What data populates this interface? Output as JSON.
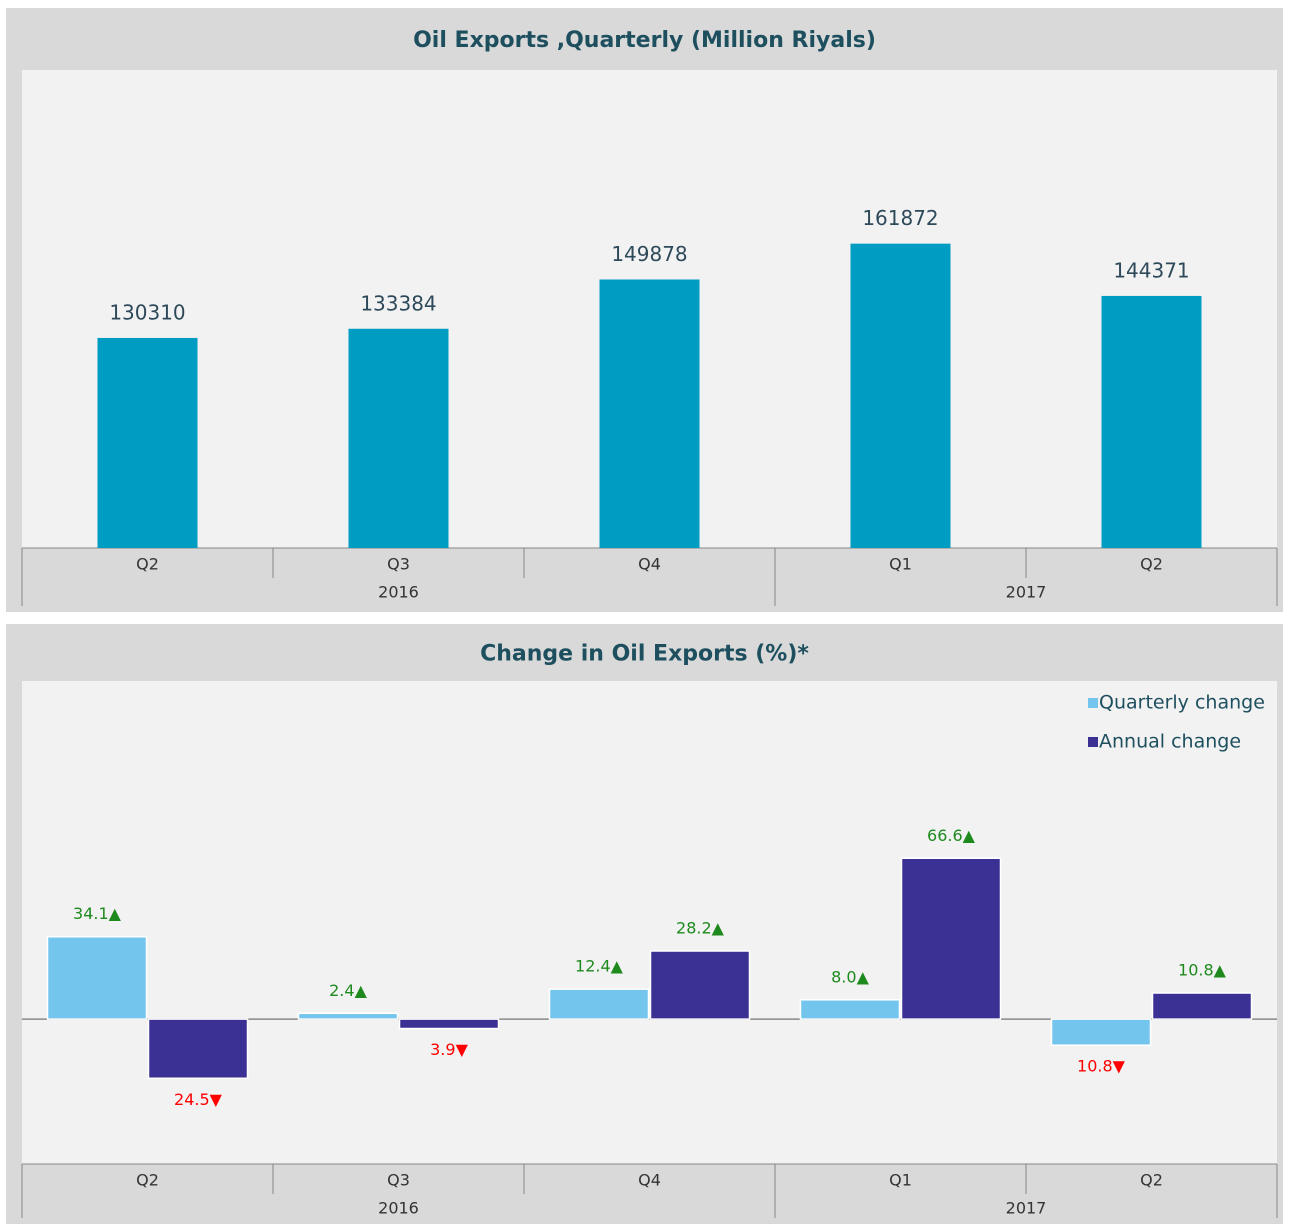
{
  "chart_data": [
    {
      "type": "bar",
      "title": "Oil Exports ,Quarterly (Million Riyals)",
      "categories": [
        "Q2",
        "Q3",
        "Q4",
        "Q1",
        "Q2"
      ],
      "x_groups": [
        "2016",
        "2016",
        "2016",
        "2017",
        "2017"
      ],
      "values": [
        130310,
        133384,
        149878,
        161872,
        144371
      ],
      "color": "#009cc1",
      "label_color": "#2e4a5a",
      "ylim": [
        60000,
        220000
      ]
    },
    {
      "type": "bar",
      "title": "Change in Oil Exports (%)*",
      "categories": [
        "Q2",
        "Q3",
        "Q4",
        "Q1",
        "Q2"
      ],
      "x_groups": [
        "2016",
        "2016",
        "2016",
        "2017",
        "2017"
      ],
      "series": [
        {
          "name": "Quarterly change",
          "color": "#74c5ee",
          "values": [
            34.1,
            2.4,
            12.4,
            8.0,
            -10.8
          ],
          "value_labels": [
            "34.1▲",
            "2.4▲",
            "12.4▲",
            "8.0▲",
            "10.8▼"
          ]
        },
        {
          "name": "Annual change",
          "color": "#3b3093",
          "values": [
            -24.5,
            -3.9,
            28.2,
            66.6,
            10.8
          ],
          "value_labels": [
            "24.5▼",
            "3.9▼",
            "28.2▲",
            "66.6▲",
            "10.8▲"
          ]
        }
      ],
      "label_colors": {
        "positive": "#1e8a1e",
        "negative": "#ff0000"
      },
      "legend": "top-right",
      "ylim": [
        -60,
        140
      ]
    }
  ]
}
